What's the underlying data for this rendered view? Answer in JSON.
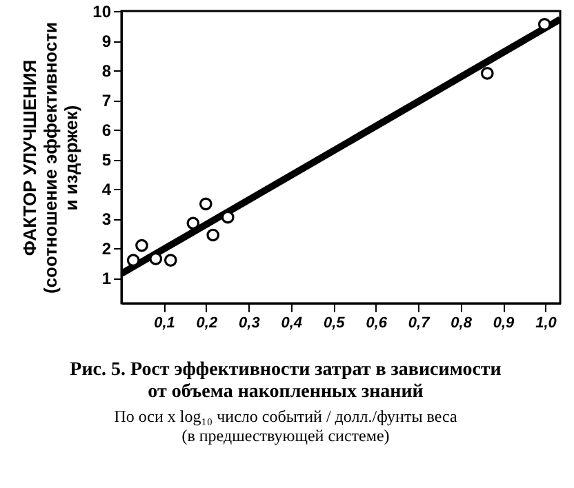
{
  "chart_data": {
    "type": "scatter",
    "title": "Рис. 5. Рост эффективности затрат в зависимости\nот объема накопленных знаний",
    "subtitle": "По оси x  log₁₀ число событий / долл./фунты веса\n(в предшествующей системе)",
    "ylabel": "ФАКТОР УЛУЧШЕНИЯ\n(соотношение эффективности\nи издержек)",
    "series": [
      {
        "color": "#000000",
        "marker": "circle",
        "x": [
          0.028,
          0.048,
          0.081,
          0.116,
          0.169,
          0.199,
          0.216,
          0.251,
          0.863,
          0.998
        ],
        "values": [
          1.6,
          2.1,
          1.65,
          1.6,
          2.85,
          3.5,
          2.45,
          3.05,
          7.9,
          9.55
        ]
      },
      {
        "type": "line",
        "color": "#000000",
        "marker": "none",
        "x": [
          0,
          1.035
        ],
        "values": [
          1.15,
          9.72
        ]
      }
    ],
    "xlim": [
      0,
      1.035
    ],
    "ylim": [
      0.15,
      10
    ],
    "xticks": [
      {
        "value": 0.1,
        "label": "0,1"
      },
      {
        "value": 0.2,
        "label": "0,2"
      },
      {
        "value": 0.3,
        "label": "0,3"
      },
      {
        "value": 0.4,
        "label": "0,4"
      },
      {
        "value": 0.5,
        "label": "0,5"
      },
      {
        "value": 0.6,
        "label": "0,6"
      },
      {
        "value": 0.7,
        "label": "0,7"
      },
      {
        "value": 0.8,
        "label": "0,8"
      },
      {
        "value": 0.9,
        "label": "0,9"
      },
      {
        "value": 1.0,
        "label": "1,0"
      }
    ],
    "yticks": [
      1,
      2,
      3,
      4,
      5,
      6,
      7,
      8,
      9,
      10
    ],
    "grid": false
  }
}
